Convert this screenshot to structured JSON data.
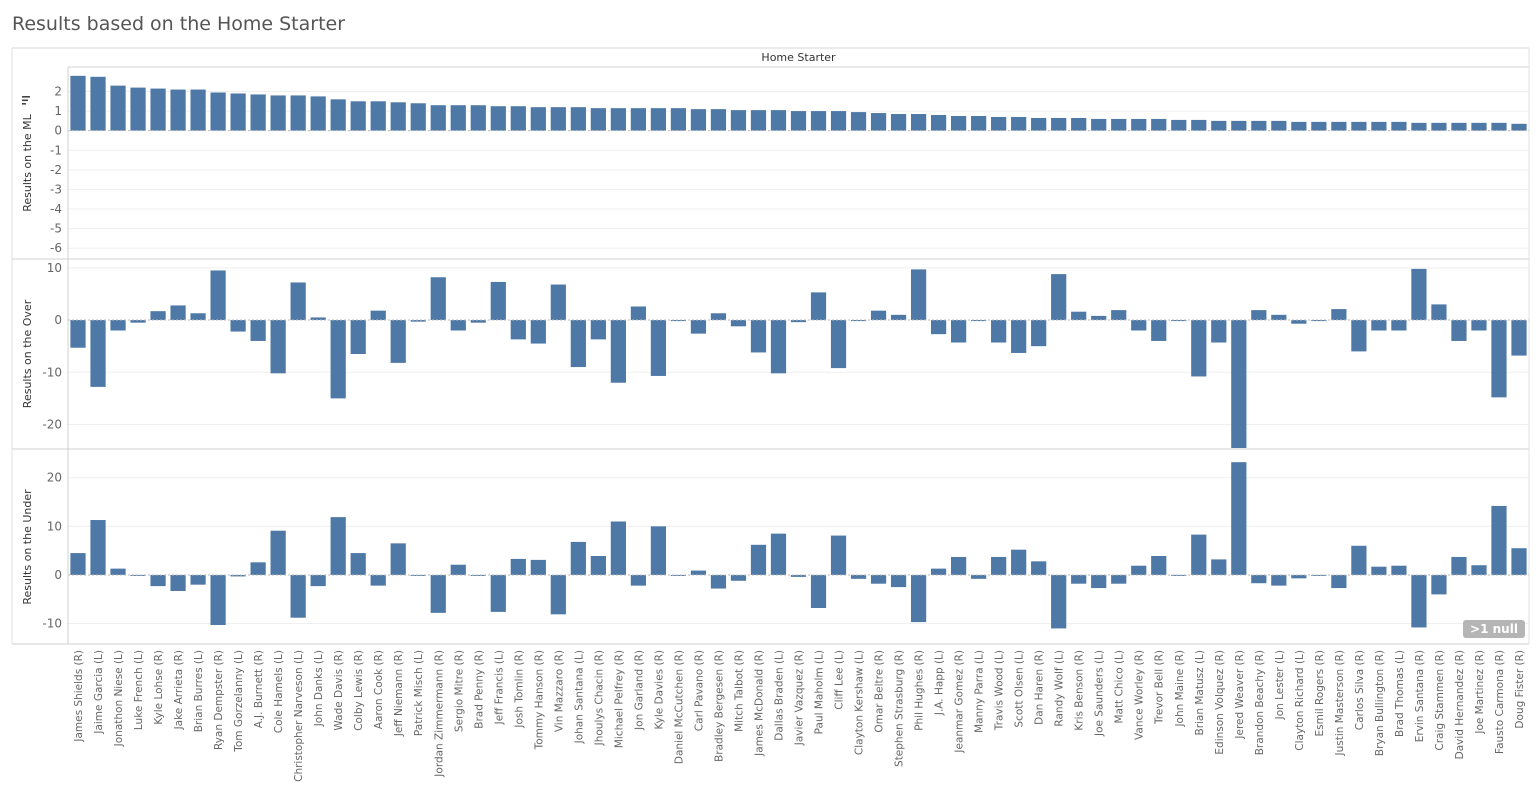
{
  "page": {
    "title": "Results based on the Home Starter"
  },
  "chart_data": {
    "type": "bar",
    "column_header": "Home Starter",
    "bar_color": "#4e79a7",
    "null_indicator": ">1 null",
    "categories": [
      "James Shields (R)",
      "Jaime Garcia (L)",
      "Jonathon Niese (L)",
      "Luke French (L)",
      "Kyle Lohse (R)",
      "Jake Arrieta (R)",
      "Brian Burres (L)",
      "Ryan Dempster (R)",
      "Tom Gorzelanny (L)",
      "A.J. Burnett (R)",
      "Cole Hamels (L)",
      "Christopher Narveson (L)",
      "John Danks (L)",
      "Wade Davis (R)",
      "Colby Lewis (R)",
      "Aaron Cook (R)",
      "Jeff Niemann (R)",
      "Patrick Misch (L)",
      "Jordan Zimmermann (R)",
      "Sergio Mitre (R)",
      "Brad Penny (R)",
      "Jeff Francis (L)",
      "Josh Tomlin (R)",
      "Tommy Hanson (R)",
      "Vin Mazzaro (R)",
      "Johan Santana (L)",
      "Jhoulys Chacin (R)",
      "Michael Pelfrey (R)",
      "Jon Garland (R)",
      "Kyle Davies (R)",
      "Daniel McCutchen (R)",
      "Carl Pavano (R)",
      "Bradley Bergesen (R)",
      "Mitch Talbot (R)",
      "James McDonald (R)",
      "Dallas Braden (L)",
      "Javier Vazquez (R)",
      "Paul Maholm (L)",
      "Cliff Lee (L)",
      "Clayton Kershaw (L)",
      "Omar Beltre (R)",
      "Stephen Strasburg (R)",
      "Phil Hughes (R)",
      "J.A. Happ (L)",
      "Jeanmar Gomez (R)",
      "Manny Parra (L)",
      "Travis Wood (L)",
      "Scott Olsen (L)",
      "Dan Haren (R)",
      "Randy Wolf (L)",
      "Kris Benson (R)",
      "Joe Saunders (L)",
      "Matt Chico (L)",
      "Vance Worley (R)",
      "Trevor Bell (R)",
      "John Maine (R)",
      "Brian Matusz (L)",
      "Edinson Volquez (R)",
      "Jered Weaver (R)",
      "Brandon Beachy (R)",
      "Jon Lester (L)",
      "Clayton Richard (L)",
      "Esmil Rogers (R)",
      "Justin Masterson (R)",
      "Carlos Silva (R)",
      "Bryan Bullington (R)",
      "Brad Thomas (L)",
      "Ervin Santana (R)",
      "Craig Stammen (R)",
      "David Hernandez (R)",
      "Joe Martinez (R)",
      "Fausto Carmona (R)",
      "Doug Fister (R)"
    ],
    "series": [
      {
        "name": "Results on the ML",
        "ylim": [
          -6.5,
          3.2
        ],
        "ticks": [
          2,
          1,
          0,
          -1,
          -2,
          -3,
          -4,
          -5,
          -6
        ],
        "values": [
          2.8,
          2.75,
          2.3,
          2.2,
          2.15,
          2.1,
          2.1,
          1.95,
          1.9,
          1.85,
          1.8,
          1.8,
          1.75,
          1.6,
          1.5,
          1.5,
          1.45,
          1.4,
          1.3,
          1.3,
          1.3,
          1.25,
          1.25,
          1.2,
          1.2,
          1.2,
          1.15,
          1.15,
          1.15,
          1.15,
          1.15,
          1.1,
          1.1,
          1.05,
          1.05,
          1.05,
          1.0,
          1.0,
          1.0,
          0.95,
          0.9,
          0.85,
          0.85,
          0.8,
          0.75,
          0.75,
          0.7,
          0.7,
          0.65,
          0.65,
          0.65,
          0.6,
          0.6,
          0.6,
          0.6,
          0.55,
          0.55,
          0.5,
          0.5,
          0.5,
          0.5,
          0.45,
          0.45,
          0.45,
          0.45,
          0.45,
          0.45,
          0.4,
          0.4,
          0.4,
          0.4,
          0.4,
          0.35
        ]
      },
      {
        "name": "Results on the Over",
        "ylim": [
          -24.5,
          11.5
        ],
        "ticks": [
          10,
          0,
          -10,
          -20
        ],
        "values": [
          -5.3,
          -12.8,
          -2,
          -0.5,
          1.7,
          2.8,
          1.3,
          9.5,
          -2.2,
          -4,
          -10.2,
          7.2,
          0.5,
          -15,
          -6.5,
          1.8,
          -8.2,
          -0.3,
          8.2,
          -2,
          -0.5,
          7.3,
          -3.7,
          -4.5,
          6.8,
          -9,
          -3.7,
          -12,
          2.6,
          -10.7,
          -0.2,
          -2.6,
          1.3,
          -1.2,
          -6.2,
          -10.2,
          -0.4,
          5.3,
          -9.2,
          -0.2,
          1.8,
          1,
          9.7,
          -2.7,
          -4.3,
          -0.2,
          -4.3,
          -6.3,
          -5,
          8.8,
          1.6,
          0.8,
          1.9,
          -2,
          -4,
          -0.2,
          -10.8,
          -4.3,
          -24.5,
          1.9,
          1,
          -0.7,
          -0.2,
          2.1,
          -6,
          -2,
          -2,
          9.8,
          3,
          -4,
          -2,
          -14.8,
          -6.8
        ]
      },
      {
        "name": "Results on the Under",
        "ylim": [
          -14,
          25.5
        ],
        "ticks": [
          20,
          10,
          0,
          -10
        ],
        "values": [
          4.5,
          11.3,
          1.3,
          -0.2,
          -2.3,
          -3.3,
          -2,
          -10.3,
          -0.3,
          2.6,
          9.1,
          -8.8,
          -2.3,
          11.9,
          4.5,
          -2.2,
          6.5,
          -0.2,
          -7.8,
          2.1,
          -0.2,
          -7.6,
          3.3,
          3.1,
          -8.1,
          6.8,
          3.9,
          11,
          -2.2,
          10,
          -0.2,
          0.9,
          -2.8,
          -1.2,
          6.2,
          8.5,
          -0.4,
          -6.8,
          8.1,
          -0.8,
          -1.8,
          -2.5,
          -9.7,
          1.3,
          3.7,
          -0.8,
          3.7,
          5.2,
          2.8,
          -11,
          -1.8,
          -2.7,
          -1.8,
          1.9,
          3.9,
          -0.2,
          8.3,
          3.2,
          23.2,
          -1.7,
          -2.2,
          -0.7,
          -0.2,
          -2.7,
          6,
          1.7,
          1.9,
          -10.8,
          -4,
          3.7,
          2,
          14.2,
          5.5
        ]
      }
    ]
  }
}
